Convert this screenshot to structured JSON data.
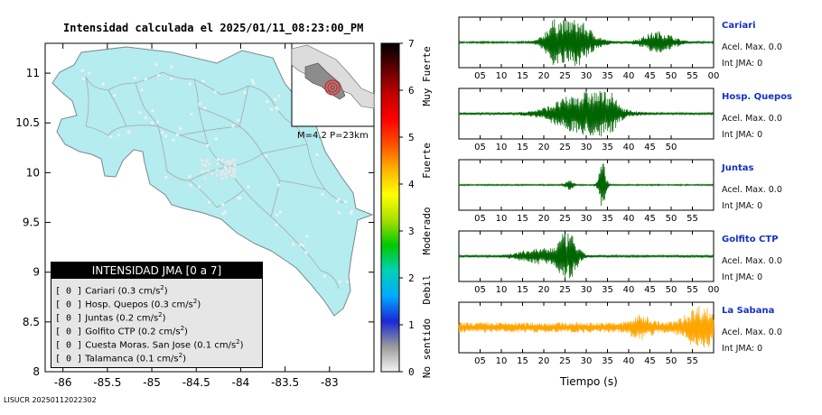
{
  "map": {
    "title": "Intensidad calculada el 2025/01/11_08:23:00_PM",
    "lon_ticks": [
      "-86",
      "-85.5",
      "-85",
      "-84.5",
      "-84",
      "-83.5",
      "-83"
    ],
    "lat_ticks": [
      "8",
      "8.5",
      "9",
      "9.5",
      "10",
      "10.5",
      "11"
    ],
    "inset_label": "M=4.2 P=23km",
    "colors": {
      "land": "#b4ecef",
      "ocean": "#ffffff",
      "roads": "#a9a9a9",
      "epicenter": "#e02020"
    }
  },
  "legend": {
    "title": "INTENSIDAD JMA [0 a 7]",
    "unit": "cm/s",
    "unit_exp": "2",
    "items": [
      {
        "level": "[ 0 ]",
        "name": "Cariari",
        "value": "(0.3 cm/s"
      },
      {
        "level": "[ 0 ]",
        "name": "Hosp. Quepos",
        "value": "(0.3 cm/s"
      },
      {
        "level": "[ 0 ]",
        "name": "Juntas",
        "value": "(0.2 cm/s"
      },
      {
        "level": "[ 0 ]",
        "name": "Golfito CTP",
        "value": "(0.2 cm/s"
      },
      {
        "level": "[ 0 ]",
        "name": "Cuesta Moras. San Jose",
        "value": "(0.1 cm/s"
      },
      {
        "level": "[ 0 ]",
        "name": "Talamanca",
        "value": "(0.1 cm/s"
      }
    ]
  },
  "colorbar": {
    "ticks": [
      "0",
      "1",
      "2",
      "3",
      "4",
      "5",
      "6",
      "7"
    ],
    "categories": [
      "No sentido",
      "Debil",
      "Moderado",
      "Fuerte",
      "Muy Fuerte"
    ],
    "gradient": [
      "#f4f4f4",
      "#9a9a9a",
      "#1a28d8",
      "#00aaff",
      "#00d2b4",
      "#00c800",
      "#a8e000",
      "#ffff00",
      "#ffb400",
      "#ff5000",
      "#ff0000",
      "#c00000",
      "#600000",
      "#000000"
    ]
  },
  "stations": [
    {
      "name": "Cariari",
      "acel": "Acel. Max. 0.0",
      "jma": "Int JMA: 0",
      "color": "#006400",
      "ticks": [
        "05",
        "10",
        "15",
        "20",
        "25",
        "30",
        "35",
        "40",
        "45",
        "50",
        "55",
        "00"
      ]
    },
    {
      "name": "Hosp. Quepos",
      "acel": "Acel. Max. 0.0",
      "jma": "Int JMA: 0",
      "color": "#006400",
      "ticks": [
        "05",
        "10",
        "15",
        "20",
        "25",
        "30",
        "35",
        "40",
        "45",
        "50"
      ]
    },
    {
      "name": "Juntas",
      "acel": "Acel. Max. 0.0",
      "jma": "Int JMA: 0",
      "color": "#006400",
      "ticks": [
        "05",
        "10",
        "15",
        "20",
        "25",
        "30",
        "35",
        "40",
        "45",
        "50",
        "55"
      ]
    },
    {
      "name": "Golfito CTP",
      "acel": "Acel. Max. 0.0",
      "jma": "Int JMA: 0",
      "color": "#006400",
      "ticks": [
        "05",
        "10",
        "15",
        "20",
        "25",
        "30",
        "35",
        "40",
        "45",
        "50",
        "55",
        "00"
      ]
    },
    {
      "name": "La Sabana",
      "acel": "Acel. Max. 0.0",
      "jma": "Int JMA: 0",
      "color": "#ffa500",
      "ticks": [
        "05",
        "10",
        "15",
        "20",
        "25",
        "30",
        "35",
        "40",
        "45",
        "50",
        "55"
      ]
    }
  ],
  "time_axis_label": "Tiempo (s)",
  "footer": "LISUCR 20250112022302",
  "chart_data": [
    {
      "type": "heatmap",
      "title": "Intensidad calculada el 2025/01/11_08:23:00_PM",
      "xlim": [
        -86.2,
        -82.5
      ],
      "ylim": [
        8.0,
        11.3
      ],
      "x_ticks": [
        -86,
        -85.5,
        -85,
        -84.5,
        -84,
        -83.5,
        -83
      ],
      "y_ticks": [
        8,
        8.5,
        9,
        9.5,
        10,
        10.5,
        11
      ],
      "colorbar_range": [
        0,
        7
      ],
      "magnitude": 4.2,
      "depth_km": 23
    },
    {
      "type": "line",
      "xlabel": "Tiempo (s)",
      "series": [
        {
          "name": "Cariari",
          "bursts": [
            [
              27,
              7,
              1.0
            ],
            [
              23,
              4,
              0.7
            ],
            [
              47,
              6,
              0.45
            ]
          ],
          "noise": 0.04
        },
        {
          "name": "Hosp. Quepos",
          "bursts": [
            [
              29,
              11,
              0.85
            ],
            [
              34,
              4,
              0.8
            ]
          ],
          "noise": 0.05
        },
        {
          "name": "Juntas",
          "bursts": [
            [
              33.8,
              1.3,
              1.0
            ],
            [
              26,
              1.5,
              0.2
            ]
          ],
          "noise": 0.03
        },
        {
          "name": "Golfito CTP",
          "bursts": [
            [
              25.6,
              3.5,
              1.0
            ],
            [
              19,
              8,
              0.3
            ]
          ],
          "noise": 0.05
        },
        {
          "name": "La Sabana",
          "bursts": [
            [
              57,
              6,
              0.75
            ],
            [
              43,
              4,
              0.35
            ]
          ],
          "noise": 0.22
        }
      ]
    }
  ]
}
